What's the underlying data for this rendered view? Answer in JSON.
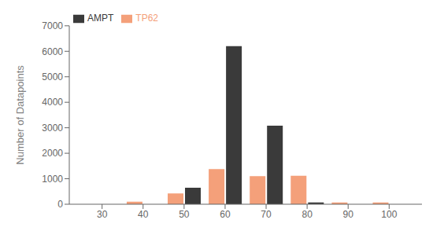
{
  "chart_data": {
    "type": "bar",
    "x": [
      30,
      40,
      50,
      60,
      70,
      80,
      90,
      100
    ],
    "series": [
      {
        "name": "TP62",
        "color": "#F4A07A",
        "values": [
          0,
          100,
          420,
          1380,
          1100,
          1120,
          70,
          70
        ]
      },
      {
        "name": "AMPT",
        "color": "#3A3A3A",
        "values": [
          0,
          0,
          650,
          6200,
          3080,
          70,
          0,
          0
        ]
      }
    ],
    "ylabel": "Number of Datapoints",
    "xlim": [
      22,
      108
    ],
    "xticks": [
      30,
      40,
      50,
      60,
      70,
      80,
      90,
      100
    ],
    "ylim": [
      0,
      7000
    ],
    "yticks": [
      0,
      1000,
      2000,
      3000,
      4000,
      5000,
      6000,
      7000
    ],
    "legend": "upper left",
    "grid": false
  }
}
